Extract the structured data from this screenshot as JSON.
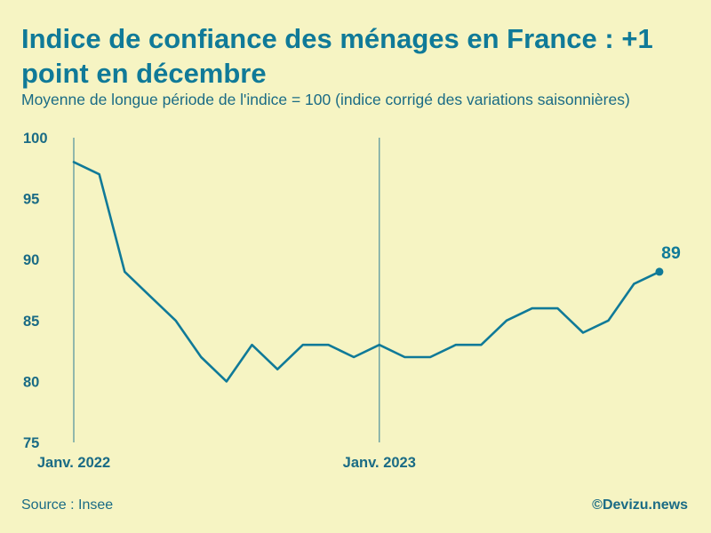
{
  "colors": {
    "background": "#f6f4c3",
    "title": "#107a98",
    "text": "#1a6b85",
    "line": "#107a98",
    "guide": "#4e8f9c"
  },
  "title": "Indice de confiance des ménages en France : +1 point en décembre",
  "subtitle": "Moyenne de longue période de l'indice = 100 (indice corrigé des variations saisonnières)",
  "source": "Source : Insee",
  "credit": "©Devizu.news",
  "chart_data": {
    "type": "line",
    "title": "Indice de confiance des ménages en France : +1 point en décembre",
    "subtitle": "Moyenne de longue période de l'indice = 100 (indice corrigé des variations saisonnières)",
    "xlabel": "",
    "ylabel": "",
    "x": [
      "2022-01",
      "2022-02",
      "2022-03",
      "2022-04",
      "2022-05",
      "2022-06",
      "2022-07",
      "2022-08",
      "2022-09",
      "2022-10",
      "2022-11",
      "2022-12",
      "2023-01",
      "2023-02",
      "2023-03",
      "2023-04",
      "2023-05",
      "2023-06",
      "2023-07",
      "2023-08",
      "2023-09",
      "2023-10",
      "2023-11",
      "2023-12"
    ],
    "series": [
      {
        "values": [
          98,
          97,
          89,
          87,
          85,
          82,
          80,
          83,
          81,
          83,
          83,
          82,
          83,
          82,
          82,
          83,
          83,
          85,
          86,
          86,
          84,
          85,
          88,
          89
        ]
      }
    ],
    "ylim": [
      75,
      100
    ],
    "yticks": [
      75,
      80,
      85,
      90,
      95,
      100
    ],
    "xtick_labels": [
      {
        "x": "2022-01",
        "label": "Janv. 2022"
      },
      {
        "x": "2023-01",
        "label": "Janv. 2023"
      }
    ],
    "end_label": "89",
    "grid": false,
    "legend": "none"
  }
}
